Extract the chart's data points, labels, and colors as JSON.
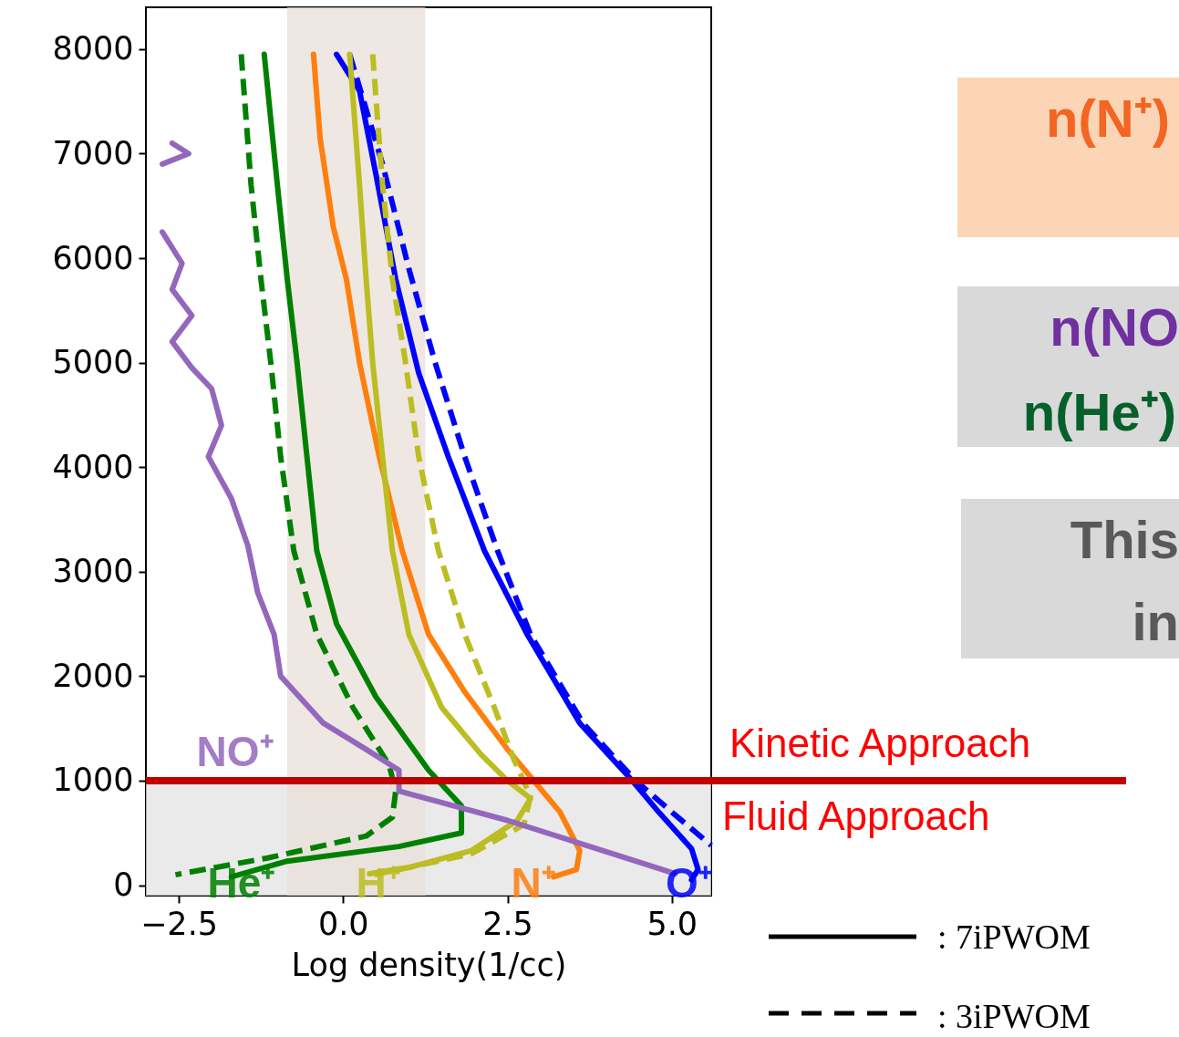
{
  "chart_data": {
    "type": "line",
    "xlabel": "Log density(1/cc)",
    "xlim": [
      -3.0,
      5.6
    ],
    "ylim": [
      -100,
      8400
    ],
    "xticks": [
      {
        "value": -2.5,
        "label": "−2.5"
      },
      {
        "value": 0,
        "label": "0.0"
      },
      {
        "value": 2.5,
        "label": "2.5"
      },
      {
        "value": 5,
        "label": "5.0"
      }
    ],
    "yticks": [
      0,
      1000,
      2000,
      3000,
      4000,
      5000,
      6000,
      7000,
      8000
    ],
    "series": [
      {
        "name": "O⁺",
        "color": "#0000ff",
        "line_style": "solid",
        "x": [
          -0.1,
          0.25,
          0.5,
          0.8,
          1.15,
          1.6,
          2.15,
          2.8,
          3.6,
          4.4,
          4.8,
          5.3,
          5.4,
          5.3
        ],
        "values": [
          7950,
          7600,
          6800,
          5800,
          4900,
          4100,
          3200,
          2400,
          1550,
          1000,
          700,
          350,
          150,
          50
        ]
      },
      {
        "color": "#0000ff",
        "line_style": "dashed",
        "x": [
          0.1,
          0.6,
          1.0,
          1.4,
          1.85,
          2.35,
          2.85,
          3.65,
          4.45,
          5.0,
          5.6
        ],
        "values": [
          7950,
          6900,
          5900,
          5000,
          4100,
          3200,
          2400,
          1550,
          1000,
          700,
          380
        ]
      },
      {
        "name": "N⁺",
        "color": "#ff7f0e",
        "line_style": "solid",
        "x": [
          -0.45,
          -0.35,
          -0.15,
          0.05,
          0.25,
          0.55,
          0.9,
          1.3,
          1.85,
          2.5,
          2.9,
          3.3,
          3.6,
          3.55,
          3.2
        ],
        "values": [
          7950,
          7150,
          6300,
          5800,
          5000,
          4100,
          3200,
          2400,
          1850,
          1300,
          1000,
          700,
          330,
          150,
          80
        ]
      },
      {
        "name": "H⁺",
        "color": "#bcbd22",
        "line_style": "solid",
        "x": [
          0.1,
          0.25,
          0.35,
          0.45,
          0.6,
          0.75,
          1.0,
          1.5,
          2.1,
          2.5,
          2.85,
          2.65,
          1.95,
          1.0,
          0.4
        ],
        "values": [
          7950,
          6700,
          5800,
          5000,
          4100,
          3200,
          2400,
          1700,
          1250,
          1000,
          830,
          620,
          330,
          170,
          110
        ]
      },
      {
        "color": "#bcbd22",
        "line_style": "dashed",
        "x": [
          0.45,
          0.6,
          0.75,
          0.95,
          1.15,
          1.45,
          1.85,
          2.3,
          2.6,
          2.85,
          2.75,
          1.95,
          1.0,
          0.4
        ],
        "values": [
          7950,
          6700,
          5800,
          5000,
          4100,
          3200,
          2400,
          1700,
          1200,
          850,
          580,
          300,
          170,
          90
        ]
      },
      {
        "name": "He⁺",
        "color": "#008000",
        "line_style": "solid",
        "x": [
          -1.2,
          -1.0,
          -0.85,
          -0.7,
          -0.55,
          -0.4,
          -0.1,
          0.5,
          1.3,
          1.8,
          1.8,
          0.85,
          -0.85,
          -1.7
        ],
        "values": [
          7950,
          6700,
          5800,
          5000,
          4100,
          3200,
          2500,
          1800,
          1100,
          760,
          500,
          370,
          230,
          80
        ]
      },
      {
        "color": "#008000",
        "line_style": "dashed",
        "x": [
          -1.55,
          -1.4,
          -1.25,
          -1.1,
          -0.95,
          -0.75,
          -0.4,
          0.15,
          0.7,
          0.8,
          0.75,
          0.35,
          -1.15,
          -2.55
        ],
        "values": [
          7950,
          6700,
          5800,
          5000,
          4100,
          3200,
          2400,
          1700,
          1150,
          900,
          650,
          470,
          260,
          100
        ]
      },
      {
        "name": "NO⁺",
        "color": "#9467bd",
        "line_style": "solid",
        "x": [
          -2.6,
          -2.35,
          -2.75,
          null,
          -2.75,
          -2.45,
          -2.6,
          -2.3,
          -2.6,
          -2.3,
          -2.0,
          -1.85,
          -2.05,
          -1.7,
          -1.45,
          -1.3,
          -1.05,
          -0.95,
          -0.3,
          0.35,
          0.85,
          0.85,
          2.5,
          3.95,
          5.05
        ],
        "values": [
          7100,
          7000,
          6900,
          null,
          6250,
          5950,
          5700,
          5450,
          5200,
          4950,
          4750,
          4400,
          4100,
          3700,
          3250,
          2800,
          2400,
          2000,
          1550,
          1300,
          1100,
          900,
          620,
          330,
          110
        ]
      }
    ],
    "ref_lines": [
      {
        "axis": "y",
        "value": 1000,
        "label": "Kinetic Approach",
        "color": "#c00000"
      }
    ],
    "bands": [
      {
        "axis": "y",
        "from": -100,
        "to": 1000,
        "label": "Fluid Approach",
        "color": "#e3e3e3"
      },
      {
        "axis": "x",
        "from": -0.85,
        "to": 1.25,
        "color": "#eadfd8"
      }
    ],
    "annotations": [
      ": 7iPWOM",
      ": 3iPWOM",
      "n(N⁺)",
      "n(NO",
      "n(He⁺)",
      "This",
      "in"
    ]
  }
}
